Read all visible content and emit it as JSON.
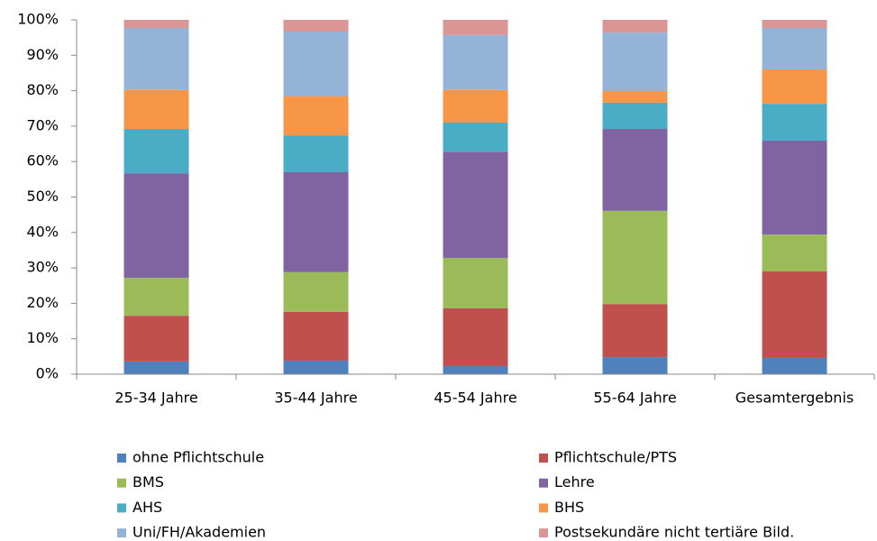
{
  "chart_data": {
    "type": "stacked_bar",
    "categories": [
      "25-34 Jahre",
      "35-44 Jahre",
      "45-54 Jahre",
      "55-64 Jahre",
      "Gesamtergebnis"
    ],
    "series": [
      {
        "name": "ohne Pflichtschule",
        "color": "#4f81bd",
        "values": [
          3.6,
          3.8,
          2.3,
          4.8,
          4.6
        ]
      },
      {
        "name": "Pflichtschule/PTS",
        "color": "#c0504d",
        "values": [
          12.9,
          13.8,
          16.3,
          15.0,
          24.4
        ]
      },
      {
        "name": "BMS",
        "color": "#9bbb59",
        "values": [
          10.7,
          11.2,
          14.2,
          26.3,
          10.4
        ]
      },
      {
        "name": "Lehre",
        "color": "#8064a2",
        "values": [
          29.5,
          28.2,
          30.0,
          23.1,
          26.5
        ]
      },
      {
        "name": "AHS",
        "color": "#4bacc6",
        "values": [
          12.5,
          10.4,
          8.2,
          7.4,
          10.4
        ]
      },
      {
        "name": "BHS",
        "color": "#f79646",
        "values": [
          11.0,
          11.0,
          9.2,
          3.3,
          9.7
        ]
      },
      {
        "name": "Uni/FH/Akademien",
        "color": "#95b3d7",
        "values": [
          17.5,
          18.3,
          15.5,
          16.5,
          11.7
        ]
      },
      {
        "name": "Postsekundäre nicht tertiäre Bild.",
        "color": "#d99694",
        "values": [
          2.3,
          3.3,
          4.3,
          3.6,
          2.3
        ]
      }
    ],
    "ylim": [
      0,
      100
    ],
    "yticks": [
      {
        "value": 0,
        "label": "0%"
      },
      {
        "value": 10,
        "label": "10%"
      },
      {
        "value": 20,
        "label": "20%"
      },
      {
        "value": 30,
        "label": "30%"
      },
      {
        "value": 40,
        "label": "40%"
      },
      {
        "value": 50,
        "label": "50%"
      },
      {
        "value": 60,
        "label": "60%"
      },
      {
        "value": 70,
        "label": "70%"
      },
      {
        "value": 80,
        "label": "80%"
      },
      {
        "value": 90,
        "label": "90%"
      },
      {
        "value": 100,
        "label": "100%"
      }
    ],
    "grid": false,
    "legend": "bottom"
  }
}
